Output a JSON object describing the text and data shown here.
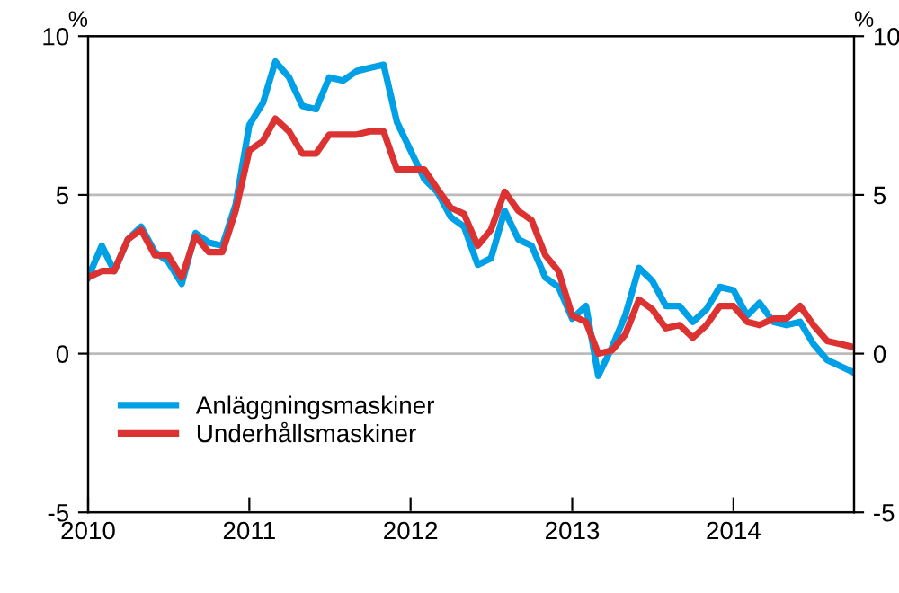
{
  "chart_data": {
    "type": "line",
    "ylabel": "%",
    "y2label": "%",
    "x": [
      "2010-01",
      "2010-02",
      "2010-03",
      "2010-04",
      "2010-05",
      "2010-06",
      "2010-07",
      "2010-08",
      "2010-09",
      "2010-10",
      "2010-11",
      "2010-12",
      "2011-01",
      "2011-02",
      "2011-03",
      "2011-04",
      "2011-05",
      "2011-06",
      "2011-07",
      "2011-08",
      "2011-09",
      "2011-10",
      "2011-11",
      "2011-12",
      "2012-01",
      "2012-02",
      "2012-03",
      "2012-04",
      "2012-05",
      "2012-06",
      "2012-07",
      "2012-08",
      "2012-09",
      "2012-10",
      "2012-11",
      "2012-12",
      "2013-01",
      "2013-02",
      "2013-03",
      "2013-04",
      "2013-05",
      "2013-06",
      "2013-07",
      "2013-08",
      "2013-09",
      "2013-10",
      "2013-11",
      "2013-12",
      "2014-01",
      "2014-02",
      "2014-03",
      "2014-04",
      "2014-05",
      "2014-06",
      "2014-07",
      "2014-08",
      "2014-09",
      "2014-10"
    ],
    "series": [
      {
        "name": "Anläggningsmaskiner",
        "color": "#00a0e6",
        "values": [
          2.4,
          3.4,
          2.6,
          3.6,
          4.0,
          3.2,
          2.9,
          2.2,
          3.8,
          3.5,
          3.4,
          4.7,
          7.2,
          7.9,
          9.2,
          8.7,
          7.8,
          7.7,
          8.7,
          8.6,
          8.9,
          9.0,
          9.1,
          7.3,
          6.4,
          5.5,
          5.1,
          4.3,
          4.0,
          2.8,
          3.0,
          4.5,
          3.6,
          3.4,
          2.4,
          2.1,
          1.1,
          1.5,
          -0.7,
          0.2,
          1.2,
          2.7,
          2.3,
          1.5,
          1.5,
          1.0,
          1.4,
          2.1,
          2.0,
          1.2,
          1.6,
          1.0,
          0.9,
          1.0,
          0.3,
          -0.2,
          -0.4,
          -0.6
        ]
      },
      {
        "name": "Underhållsmaskiner",
        "color": "#dc3232",
        "values": [
          2.4,
          2.6,
          2.6,
          3.6,
          3.9,
          3.1,
          3.1,
          2.4,
          3.7,
          3.2,
          3.2,
          4.5,
          6.4,
          6.7,
          7.4,
          7.0,
          6.3,
          6.3,
          6.9,
          6.9,
          6.9,
          7.0,
          7.0,
          5.8,
          5.8,
          5.8,
          5.2,
          4.6,
          4.4,
          3.4,
          3.9,
          5.1,
          4.5,
          4.2,
          3.1,
          2.6,
          1.2,
          1.0,
          0.0,
          0.1,
          0.6,
          1.7,
          1.4,
          0.8,
          0.9,
          0.5,
          0.9,
          1.5,
          1.5,
          1.0,
          0.9,
          1.1,
          1.1,
          1.5,
          0.9,
          0.4,
          0.3,
          0.2
        ]
      }
    ],
    "xlim": [
      "2010-01",
      "2014-10"
    ],
    "xticks": [
      {
        "value": "2010-01",
        "label": "2010"
      },
      {
        "value": "2011-01",
        "label": "2011"
      },
      {
        "value": "2012-01",
        "label": "2012"
      },
      {
        "value": "2013-01",
        "label": "2013"
      },
      {
        "value": "2014-01",
        "label": "2014"
      }
    ],
    "ylim": [
      -5,
      10
    ],
    "yticks": [
      -5,
      0,
      5,
      10
    ],
    "y2lim": [
      -5,
      10
    ],
    "y2ticks": [
      -5,
      0,
      5,
      10
    ],
    "grid": "y",
    "legend": "bottom left",
    "line_style": "solid",
    "marker": "none"
  }
}
